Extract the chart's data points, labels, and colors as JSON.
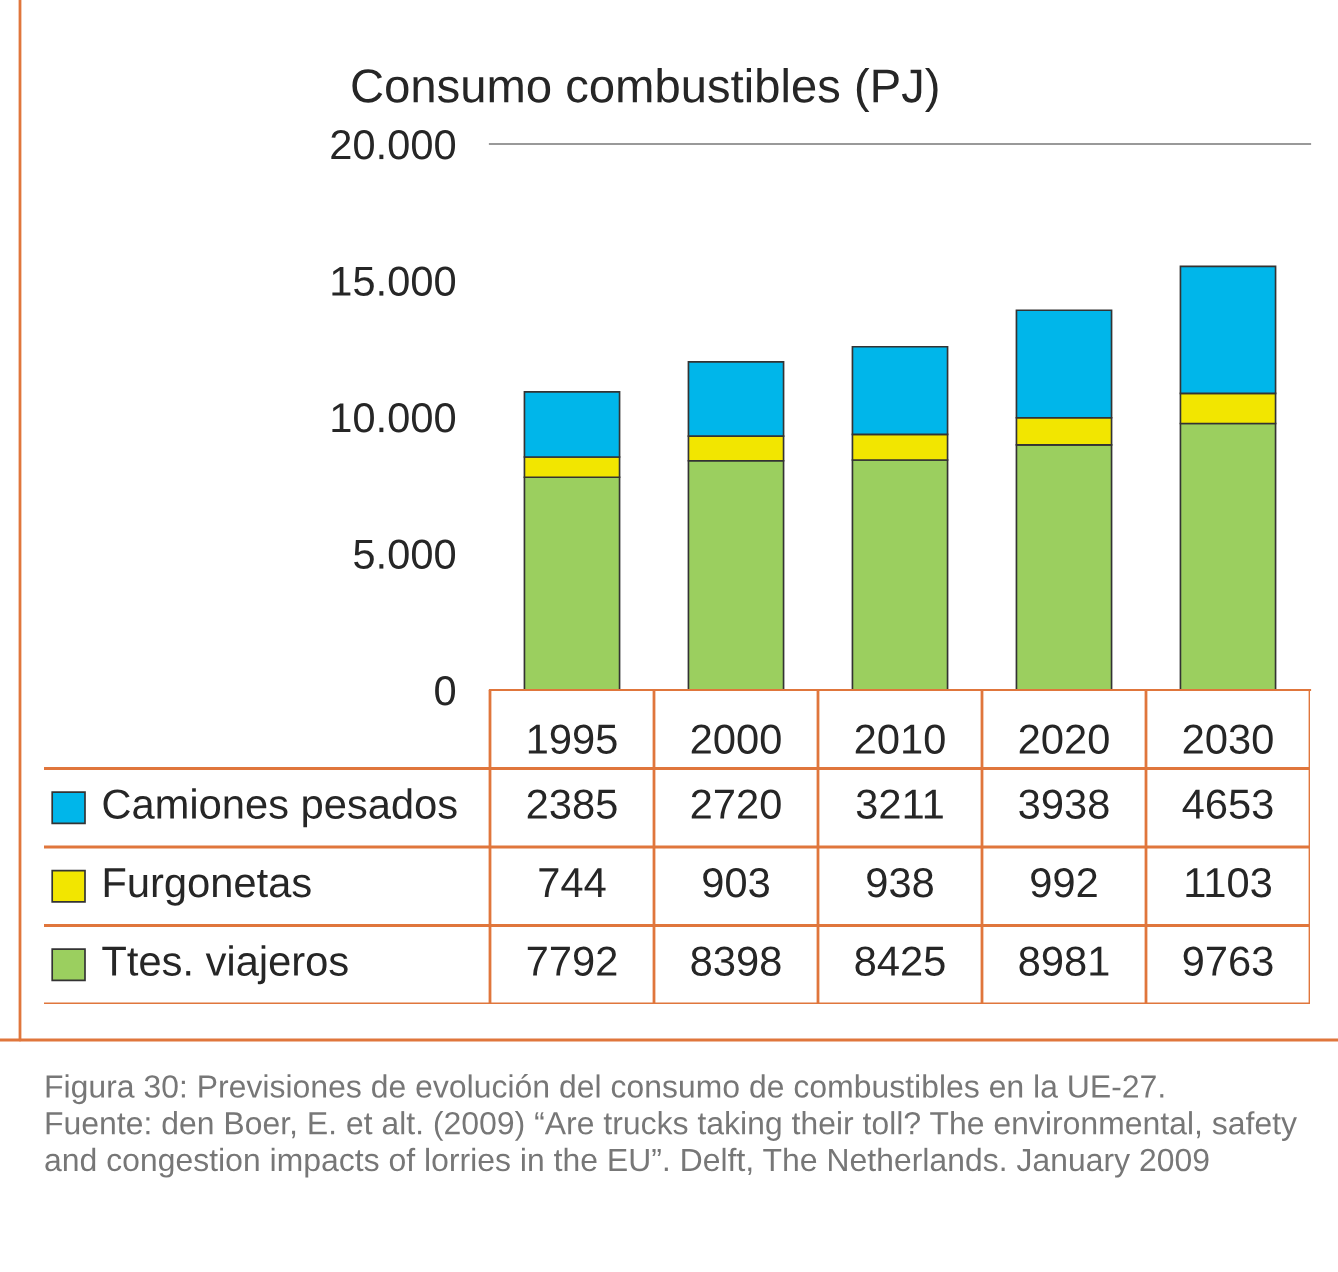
{
  "chart_data": {
    "type": "bar",
    "title": "Consumo combustibles (PJ)",
    "stacked": true,
    "data_labels": true,
    "legend": "bottom",
    "categories": [
      "1995",
      "2000",
      "2010",
      "2020",
      "2030"
    ],
    "series": [
      {
        "name": "Ttes. viajeros",
        "color": "#9bcf5f",
        "values": [
          7792,
          8398,
          8425,
          8981,
          9763
        ]
      },
      {
        "name": "Furgonetas",
        "color": "#f2e600",
        "values": [
          744,
          903,
          938,
          992,
          1103
        ]
      },
      {
        "name": "Camiones pesados",
        "color": "#00b6ea",
        "values": [
          2385,
          2720,
          3211,
          3938,
          4653
        ]
      }
    ],
    "ylim": [
      0,
      20000
    ],
    "yticks": [
      0,
      {
        "value": 5000,
        "label": "5.000"
      },
      {
        "value": 10000,
        "label": "10.000"
      },
      {
        "value": 15000,
        "label": "15.000"
      },
      {
        "value": 20000,
        "label": "20.000"
      }
    ],
    "annotations": [
      "Figura 30: Previsiones de evolución del consumo de combustibles en la UE-27.",
      "Fuente: den Boer, E. et alt. (2009) “Are trucks taking their toll? The environmental, safety and congestion impacts of lorries in the EU”. Delft, The Netherlands. January 2009"
    ]
  }
}
